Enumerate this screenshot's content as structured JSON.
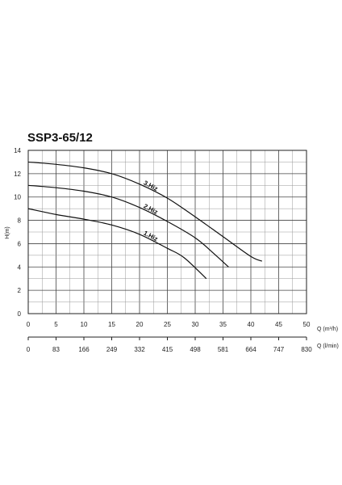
{
  "chart_data": {
    "type": "line",
    "title": "SSP3-65/12",
    "ylabel": "H(m)",
    "xlabel": "Q (m³/h)",
    "x2label": "Q (l/min)",
    "xlim": [
      0,
      50
    ],
    "ylim": [
      0,
      14
    ],
    "x_ticks": [
      "0",
      "5",
      "10",
      "15",
      "20",
      "25",
      "30",
      "35",
      "40",
      "45",
      "50"
    ],
    "y_ticks": [
      "0",
      "2",
      "4",
      "6",
      "8",
      "10",
      "12",
      "14"
    ],
    "x2_ticks": [
      "0",
      "83",
      "166",
      "249",
      "332",
      "415",
      "498",
      "581",
      "664",
      "747",
      "830"
    ],
    "grid": true,
    "series": [
      {
        "name": "3.Hiz",
        "points": [
          [
            0,
            13.0
          ],
          [
            5,
            12.8
          ],
          [
            10,
            12.5
          ],
          [
            15,
            12.0
          ],
          [
            20,
            11.1
          ],
          [
            25,
            9.9
          ],
          [
            30,
            8.3
          ],
          [
            35,
            6.6
          ],
          [
            40,
            4.9
          ],
          [
            42,
            4.5
          ]
        ]
      },
      {
        "name": "2.Hiz",
        "points": [
          [
            0,
            11.0
          ],
          [
            5,
            10.8
          ],
          [
            10,
            10.5
          ],
          [
            15,
            10.0
          ],
          [
            20,
            9.1
          ],
          [
            25,
            7.9
          ],
          [
            30,
            6.5
          ],
          [
            33,
            5.3
          ],
          [
            36,
            4.0
          ]
        ]
      },
      {
        "name": "1.Hiz",
        "points": [
          [
            0,
            9.0
          ],
          [
            5,
            8.5
          ],
          [
            10,
            8.1
          ],
          [
            15,
            7.6
          ],
          [
            20,
            6.8
          ],
          [
            25,
            5.6
          ],
          [
            28,
            4.8
          ],
          [
            32,
            3.0
          ]
        ]
      }
    ]
  }
}
